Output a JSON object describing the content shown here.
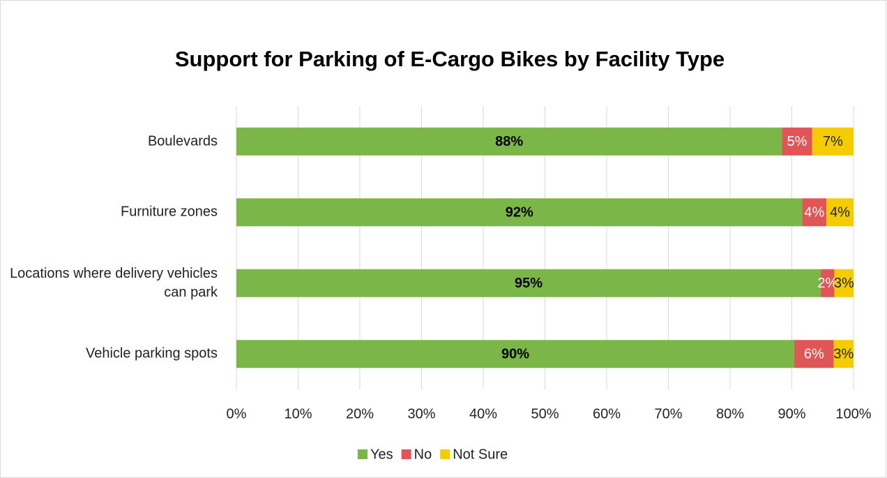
{
  "chart_data": {
    "type": "stacked_barh",
    "title": "Support for Parking of E-Cargo Bikes by Facility Type",
    "categories": [
      "Boulevards",
      "Furniture zones",
      "Locations where delivery vehicles can park",
      "Vehicle parking spots"
    ],
    "series": [
      {
        "name": "Yes",
        "color": "#7ab648",
        "label_color": "#000000",
        "values": [
          88.4,
          91.7,
          94.7,
          90.4
        ],
        "value_labels": [
          "88%",
          "92%",
          "95%",
          "90%"
        ]
      },
      {
        "name": "No",
        "color": "#e05555",
        "label_color": "#ffffff",
        "values": [
          4.9,
          3.9,
          2.2,
          6.4
        ],
        "value_labels": [
          "5%",
          "4%",
          "2%",
          "6%"
        ]
      },
      {
        "name": "Not Sure",
        "color": "#f5cc00",
        "label_color": "#222222",
        "values": [
          6.7,
          4.4,
          3.1,
          3.2
        ],
        "value_labels": [
          "7%",
          "4%",
          "3%",
          "3%"
        ]
      }
    ],
    "xlim": [
      0,
      100
    ],
    "xticks": [
      {
        "value": 0,
        "label": "0%"
      },
      {
        "value": 10,
        "label": "10%"
      },
      {
        "value": 20,
        "label": "20%"
      },
      {
        "value": 30,
        "label": "30%"
      },
      {
        "value": 40,
        "label": "40%"
      },
      {
        "value": 50,
        "label": "50%"
      },
      {
        "value": 60,
        "label": "60%"
      },
      {
        "value": 70,
        "label": "70%"
      },
      {
        "value": 80,
        "label": "80%"
      },
      {
        "value": 90,
        "label": "90%"
      },
      {
        "value": 100,
        "label": "100%"
      }
    ],
    "grid": true,
    "legend": "bottom"
  }
}
